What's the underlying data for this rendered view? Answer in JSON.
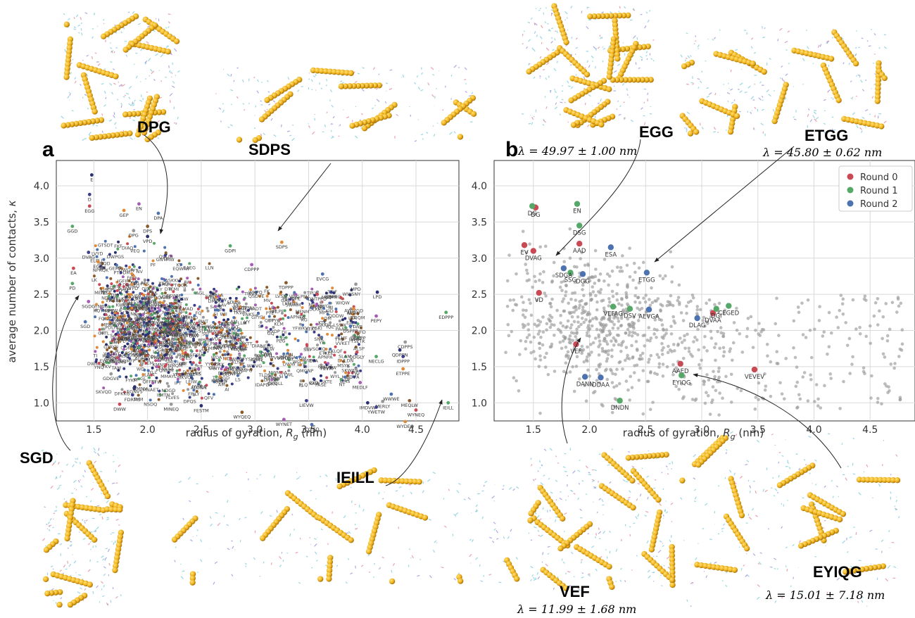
{
  "chart_data": [
    {
      "type": "scatter",
      "panel_label": "a",
      "xlabel": "radius of gyration, R_g (nm)",
      "ylabel": "average number of contacts, κ",
      "xlim": [
        1.15,
        4.9
      ],
      "ylim": [
        0.75,
        4.35
      ],
      "xticks": [
        1.5,
        2.0,
        2.5,
        3.0,
        3.5,
        4.0,
        4.5
      ],
      "yticks": [
        1.0,
        1.5,
        2.0,
        2.5,
        3.0,
        3.5,
        4.0
      ],
      "grid": true,
      "labeled_points": [
        {
          "label": "E",
          "x": 1.48,
          "y": 4.15
        },
        {
          "label": "D",
          "x": 1.46,
          "y": 3.88
        },
        {
          "label": "EGG",
          "x": 1.46,
          "y": 3.72
        },
        {
          "label": "GGD",
          "x": 1.3,
          "y": 3.44
        },
        {
          "label": "GEP",
          "x": 1.78,
          "y": 3.66
        },
        {
          "label": "EN",
          "x": 1.92,
          "y": 3.75
        },
        {
          "label": "DPA",
          "x": 2.1,
          "y": 3.62
        },
        {
          "label": "DPS",
          "x": 2.0,
          "y": 3.44
        },
        {
          "label": "DPG",
          "x": 1.87,
          "y": 3.38
        },
        {
          "label": "VPD",
          "x": 2.0,
          "y": 3.3
        },
        {
          "label": "DVAG",
          "x": 1.45,
          "y": 3.08
        },
        {
          "label": "EA",
          "x": 1.31,
          "y": 2.86
        },
        {
          "label": "PD",
          "x": 1.3,
          "y": 2.65
        },
        {
          "label": "EGG",
          "x": 1.54,
          "y": 2.95
        },
        {
          "label": "SGDG",
          "x": 1.45,
          "y": 2.4
        },
        {
          "label": "SGD",
          "x": 1.42,
          "y": 2.12
        },
        {
          "label": "DSY",
          "x": 1.7,
          "y": 1.75
        },
        {
          "label": "GDGVE",
          "x": 1.66,
          "y": 1.4
        },
        {
          "label": "EGNVS",
          "x": 1.88,
          "y": 1.22
        },
        {
          "label": "FDRMS",
          "x": 1.86,
          "y": 1.11
        },
        {
          "label": "DWW",
          "x": 1.74,
          "y": 0.98
        },
        {
          "label": "GDPI",
          "x": 2.77,
          "y": 3.17
        },
        {
          "label": "SDPS",
          "x": 3.25,
          "y": 3.22
        },
        {
          "label": "CDPPP",
          "x": 2.97,
          "y": 2.91
        },
        {
          "label": "EVCG",
          "x": 3.63,
          "y": 2.78
        },
        {
          "label": "TDPPP",
          "x": 3.29,
          "y": 2.66
        },
        {
          "label": "MPD",
          "x": 3.94,
          "y": 2.64
        },
        {
          "label": "LPD",
          "x": 4.14,
          "y": 2.53
        },
        {
          "label": "IEPPP",
          "x": 3.71,
          "y": 2.53
        },
        {
          "label": "DNTPPD",
          "x": 3.58,
          "y": 2.5
        },
        {
          "label": "EDPPP",
          "x": 4.78,
          "y": 2.25
        },
        {
          "label": "NGFV",
          "x": 3.92,
          "y": 2.3
        },
        {
          "label": "PEPY",
          "x": 4.13,
          "y": 2.2
        },
        {
          "label": "DSPPP",
          "x": 3.89,
          "y": 2.06
        },
        {
          "label": "DDPPP",
          "x": 3.96,
          "y": 1.96
        },
        {
          "label": "CDPPS",
          "x": 4.4,
          "y": 1.84
        },
        {
          "label": "QDPPN",
          "x": 4.35,
          "y": 1.73
        },
        {
          "label": "IDPPP",
          "x": 4.38,
          "y": 1.64
        },
        {
          "label": "QDGLY",
          "x": 3.95,
          "y": 1.7
        },
        {
          "label": "NECLG",
          "x": 4.13,
          "y": 1.64
        },
        {
          "label": "ETPPE",
          "x": 4.38,
          "y": 1.47
        },
        {
          "label": "MEDLF",
          "x": 3.98,
          "y": 1.28
        },
        {
          "label": "WWWE",
          "x": 4.27,
          "y": 1.12
        },
        {
          "label": "MEQLW",
          "x": 4.44,
          "y": 1.03
        },
        {
          "label": "MERLY",
          "x": 4.19,
          "y": 1.02
        },
        {
          "label": "IMDVW",
          "x": 4.05,
          "y": 1.0
        },
        {
          "label": "YWETW",
          "x": 4.13,
          "y": 0.94
        },
        {
          "label": "WYNEQ",
          "x": 4.5,
          "y": 0.9
        },
        {
          "label": "IEILL",
          "x": 4.8,
          "y": 1.0
        },
        {
          "label": "WYDEQ",
          "x": 4.4,
          "y": 0.74
        },
        {
          "label": "WYNET",
          "x": 3.27,
          "y": 0.77
        },
        {
          "label": "YYEEQ",
          "x": 3.53,
          "y": 0.7
        },
        {
          "label": "WYQEQ",
          "x": 2.88,
          "y": 0.87
        },
        {
          "label": "MINEQ",
          "x": 2.22,
          "y": 0.98
        },
        {
          "label": "FESTM",
          "x": 2.5,
          "y": 0.96
        },
        {
          "label": "LIEVW",
          "x": 3.48,
          "y": 1.03
        }
      ]
    },
    {
      "type": "scatter",
      "panel_label": "b",
      "xlabel": "radius of gyration, R_g (nm)",
      "xlim": [
        1.15,
        4.9
      ],
      "ylim": [
        0.75,
        4.35
      ],
      "xticks": [
        1.5,
        2.0,
        2.5,
        3.0,
        3.5,
        4.0,
        4.5
      ],
      "yticks": [
        1.0,
        1.5,
        2.0,
        2.5,
        3.0,
        3.5,
        4.0
      ],
      "grid": true,
      "legend_position": "top-right",
      "series": [
        {
          "name": "Round 0",
          "color": "#c94a55",
          "points": [
            {
              "label": "DG",
              "x": 1.52,
              "y": 3.7
            },
            {
              "label": "EV",
              "x": 1.42,
              "y": 3.18
            },
            {
              "label": "DVAG",
              "x": 1.5,
              "y": 3.1
            },
            {
              "label": "AAD",
              "x": 1.91,
              "y": 3.2
            },
            {
              "label": "VD",
              "x": 1.55,
              "y": 2.52
            },
            {
              "label": "VEF",
              "x": 1.88,
              "y": 1.81
            },
            {
              "label": "DVAA",
              "x": 3.1,
              "y": 2.24
            },
            {
              "label": "AAED",
              "x": 2.81,
              "y": 1.54
            },
            {
              "label": "VEVEV",
              "x": 3.47,
              "y": 1.46
            }
          ]
        },
        {
          "name": "Round 1",
          "color": "#55a868",
          "points": [
            {
              "label": "DG",
              "x": 1.49,
              "y": 3.72
            },
            {
              "label": "EN",
              "x": 1.89,
              "y": 3.75
            },
            {
              "label": "DSG",
              "x": 1.91,
              "y": 3.45
            },
            {
              "label": "SSG",
              "x": 1.83,
              "y": 2.8
            },
            {
              "label": "VEFAG",
              "x": 2.21,
              "y": 2.33
            },
            {
              "label": "DSV",
              "x": 2.36,
              "y": 2.3
            },
            {
              "label": "DGI",
              "x": 3.13,
              "y": 2.3
            },
            {
              "label": "CEGED",
              "x": 3.24,
              "y": 2.34
            },
            {
              "label": "EYIQG",
              "x": 2.82,
              "y": 1.38
            },
            {
              "label": "DNDN",
              "x": 2.27,
              "y": 1.03
            }
          ]
        },
        {
          "name": "Round 2",
          "color": "#4c72b0",
          "points": [
            {
              "label": "SDGA",
              "x": 1.77,
              "y": 2.86
            },
            {
              "label": "DGG",
              "x": 1.94,
              "y": 2.78
            },
            {
              "label": "ESA",
              "x": 2.19,
              "y": 3.15
            },
            {
              "label": "ETGG",
              "x": 2.51,
              "y": 2.8
            },
            {
              "label": "AEVGA",
              "x": 2.53,
              "y": 2.29
            },
            {
              "label": "DLAG",
              "x": 2.96,
              "y": 2.17
            },
            {
              "label": "DANN",
              "x": 1.96,
              "y": 1.36
            },
            {
              "label": "DDAA",
              "x": 2.1,
              "y": 1.35
            }
          ]
        }
      ],
      "background_points_color": "#9a9a9a",
      "annotations": [
        {
          "label": "EGG",
          "target": [
            1.53,
            2.92
          ],
          "lambda": "λ = 49.97 ± 1.00 nm"
        },
        {
          "label": "ETGG",
          "target": [
            2.51,
            2.8
          ],
          "lambda": "λ = 45.80 ± 0.62 nm"
        },
        {
          "label": "VEF",
          "target": [
            1.88,
            1.81
          ],
          "lambda": "λ = 11.99 ± 1.68 nm"
        },
        {
          "label": "EYIQG",
          "target": [
            2.82,
            1.38
          ],
          "lambda": "λ = 15.01 ± 7.18 nm"
        }
      ]
    }
  ],
  "panel_a_callouts": {
    "dpg": "DPG",
    "sdps": "SDPS",
    "sgd": "SGD",
    "ieill": "IEILL"
  },
  "colors": {
    "peptide_bead": "#f2b51f",
    "peptide_bead_dark": "#b98208",
    "atom_stick": "#6ec6d4"
  }
}
